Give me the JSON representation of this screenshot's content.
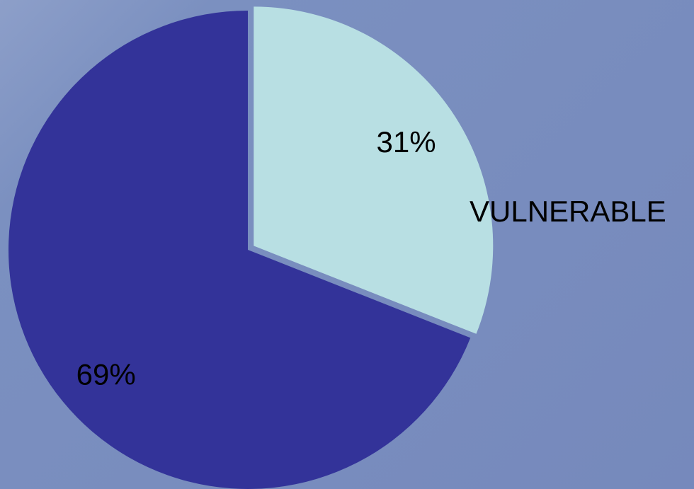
{
  "chart_data": {
    "type": "pie",
    "title": "",
    "slices": [
      {
        "value": 31,
        "label": "31%",
        "category": "VULNERABLE",
        "color": "#b8dfe3",
        "exploded": true
      },
      {
        "value": 69,
        "label": "69%",
        "category": "",
        "color": "#333399",
        "exploded": false
      }
    ],
    "start_angle_deg": 0,
    "direction": "clockwise",
    "background_color": "#7a8ec0"
  }
}
